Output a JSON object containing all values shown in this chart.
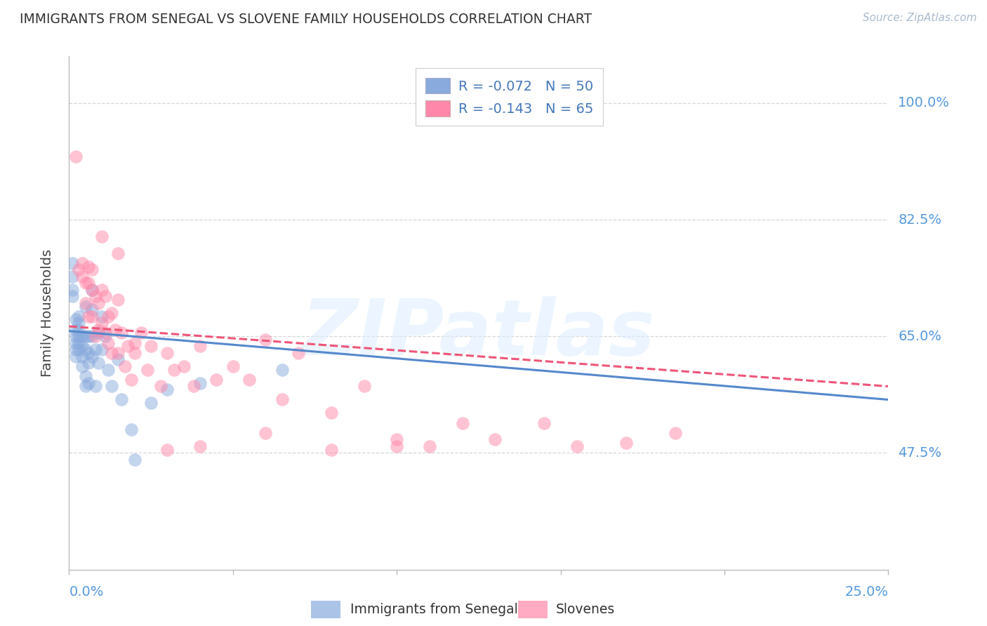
{
  "title": "IMMIGRANTS FROM SENEGAL VS SLOVENE FAMILY HOUSEHOLDS CORRELATION CHART",
  "source": "Source: ZipAtlas.com",
  "ylabel": "Family Households",
  "ytick_labels": [
    "100.0%",
    "82.5%",
    "65.0%",
    "47.5%"
  ],
  "ytick_values": [
    1.0,
    0.825,
    0.65,
    0.475
  ],
  "xlim": [
    0.0,
    0.25
  ],
  "ylim": [
    0.3,
    1.07
  ],
  "legend_line1": "R = -0.072   N = 50",
  "legend_line2": "R = -0.143   N = 65",
  "color_blue": "#88AADD",
  "color_pink": "#FF88AA",
  "color_blue_line": "#5588CC",
  "color_pink_line": "#EE5577",
  "color_axis": "#BBBBBB",
  "color_grid": "#CCCCCC",
  "color_tick_label": "#5599DD",
  "color_title": "#333333",
  "color_source": "#AABBCC",
  "watermark_text": "ZIPatlas",
  "legend_label1": "Immigrants from Senegal",
  "legend_label2": "Slovenes",
  "senegal_x": [
    0.001,
    0.001,
    0.001,
    0.001,
    0.002,
    0.002,
    0.002,
    0.002,
    0.002,
    0.002,
    0.003,
    0.003,
    0.003,
    0.003,
    0.003,
    0.003,
    0.004,
    0.004,
    0.004,
    0.004,
    0.005,
    0.005,
    0.005,
    0.005,
    0.005,
    0.006,
    0.006,
    0.006,
    0.006,
    0.007,
    0.007,
    0.007,
    0.007,
    0.008,
    0.008,
    0.009,
    0.009,
    0.01,
    0.01,
    0.011,
    0.012,
    0.013,
    0.015,
    0.016,
    0.019,
    0.02,
    0.025,
    0.03,
    0.04,
    0.065
  ],
  "senegal_y": [
    0.76,
    0.74,
    0.72,
    0.71,
    0.675,
    0.66,
    0.65,
    0.64,
    0.63,
    0.62,
    0.68,
    0.67,
    0.66,
    0.65,
    0.64,
    0.63,
    0.65,
    0.635,
    0.62,
    0.605,
    0.695,
    0.65,
    0.63,
    0.59,
    0.575,
    0.65,
    0.625,
    0.61,
    0.58,
    0.72,
    0.69,
    0.65,
    0.62,
    0.63,
    0.575,
    0.655,
    0.61,
    0.68,
    0.63,
    0.65,
    0.6,
    0.575,
    0.615,
    0.555,
    0.51,
    0.465,
    0.55,
    0.57,
    0.58,
    0.6
  ],
  "slovene_x": [
    0.002,
    0.003,
    0.004,
    0.004,
    0.005,
    0.005,
    0.006,
    0.006,
    0.006,
    0.007,
    0.007,
    0.007,
    0.008,
    0.008,
    0.009,
    0.009,
    0.01,
    0.01,
    0.011,
    0.011,
    0.012,
    0.012,
    0.013,
    0.013,
    0.014,
    0.015,
    0.015,
    0.016,
    0.017,
    0.018,
    0.019,
    0.02,
    0.022,
    0.024,
    0.025,
    0.028,
    0.03,
    0.032,
    0.035,
    0.038,
    0.04,
    0.045,
    0.05,
    0.055,
    0.06,
    0.065,
    0.07,
    0.08,
    0.09,
    0.1,
    0.11,
    0.12,
    0.13,
    0.145,
    0.155,
    0.17,
    0.185,
    0.01,
    0.015,
    0.02,
    0.03,
    0.04,
    0.06,
    0.08,
    0.1
  ],
  "slovene_y": [
    0.92,
    0.75,
    0.76,
    0.74,
    0.73,
    0.7,
    0.755,
    0.73,
    0.68,
    0.75,
    0.72,
    0.68,
    0.71,
    0.65,
    0.7,
    0.66,
    0.72,
    0.67,
    0.71,
    0.655,
    0.68,
    0.64,
    0.685,
    0.625,
    0.66,
    0.705,
    0.625,
    0.655,
    0.605,
    0.635,
    0.585,
    0.625,
    0.655,
    0.6,
    0.635,
    0.575,
    0.625,
    0.6,
    0.605,
    0.575,
    0.635,
    0.585,
    0.605,
    0.585,
    0.645,
    0.555,
    0.625,
    0.535,
    0.575,
    0.485,
    0.485,
    0.52,
    0.495,
    0.52,
    0.485,
    0.49,
    0.505,
    0.8,
    0.775,
    0.64,
    0.48,
    0.485,
    0.505,
    0.48,
    0.495
  ],
  "senegal_trend_x": [
    0.0,
    0.25
  ],
  "senegal_trend_y": [
    0.658,
    0.555
  ],
  "slovene_trend_x": [
    0.0,
    0.25
  ],
  "slovene_trend_y": [
    0.665,
    0.575
  ]
}
